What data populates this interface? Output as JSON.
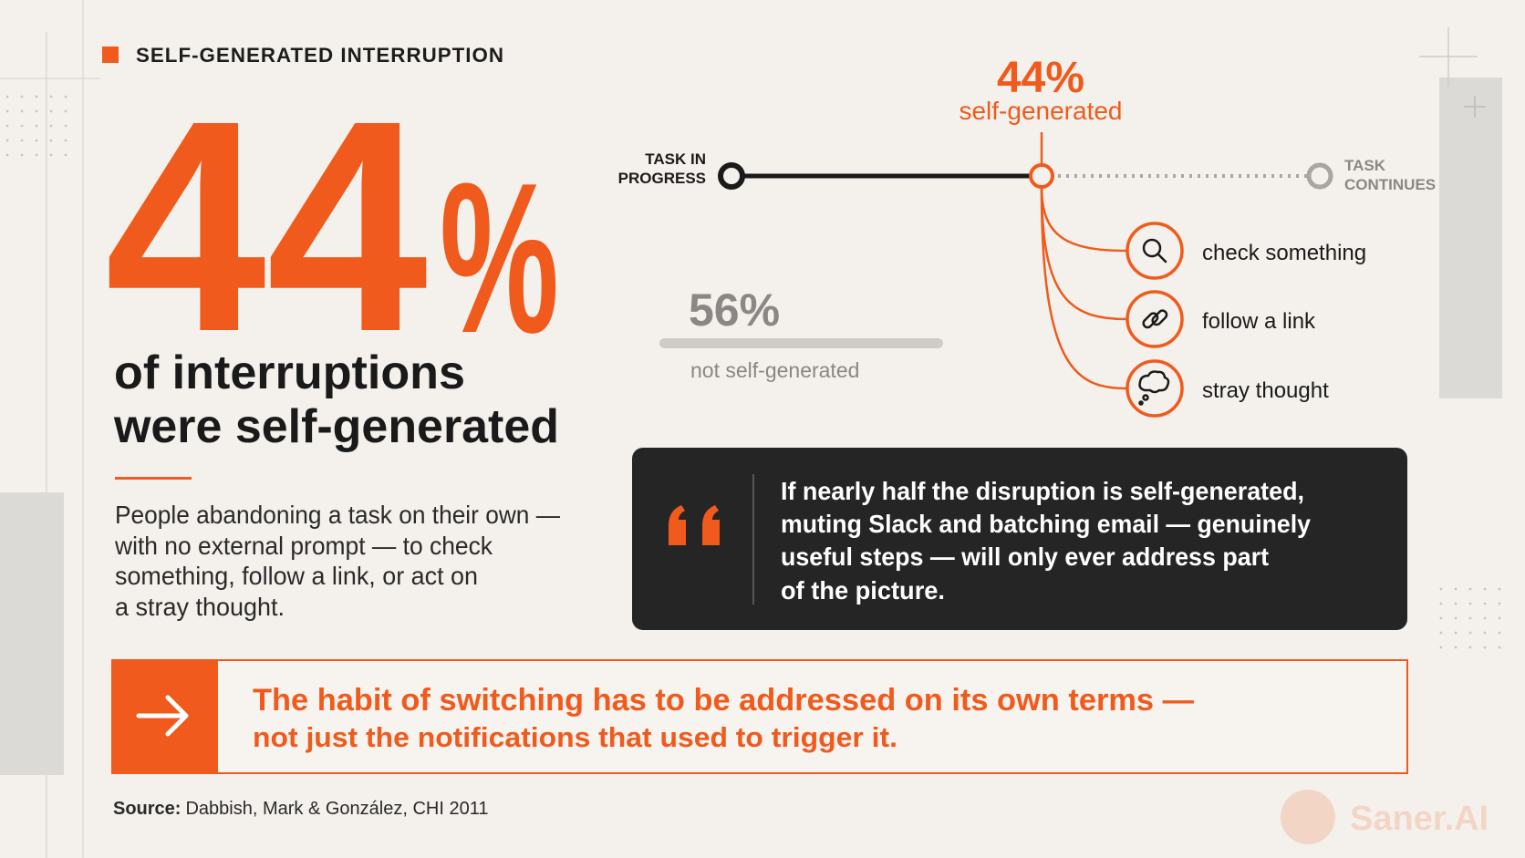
{
  "header": {
    "label": "SELF-GENERATED INTERRUPTION"
  },
  "hero": {
    "number": "44",
    "symbol": "%",
    "caption": [
      "of interruptions",
      "were self-generated"
    ],
    "body": [
      "People abandoning a task on their own —",
      "with no external prompt — to check",
      "something, follow a link, or act on",
      "a stray thought."
    ]
  },
  "timeline": {
    "start": [
      "TASK IN",
      "PROGRESS"
    ],
    "end": [
      "TASK",
      "CONTINUES"
    ],
    "stat": "44%",
    "stat_label": "self-generated",
    "branches": [
      "check something",
      "follow a link",
      "stray thought"
    ]
  },
  "other": {
    "stat": "56%",
    "label": "not self-generated"
  },
  "quote": {
    "lines": [
      "If nearly half the disruption is self-generated,",
      "muting Slack and batching email — genuinely",
      "useful steps — will only ever address part",
      "of the picture."
    ]
  },
  "callout": {
    "lines": [
      "The habit of switching has to be addressed on its own terms —",
      "not just the notifications that used to trigger it."
    ]
  },
  "source": {
    "label": "Source:",
    "text": "Dabbish, Mark & González, CHI 2011"
  },
  "brand": "Saner.AI"
}
